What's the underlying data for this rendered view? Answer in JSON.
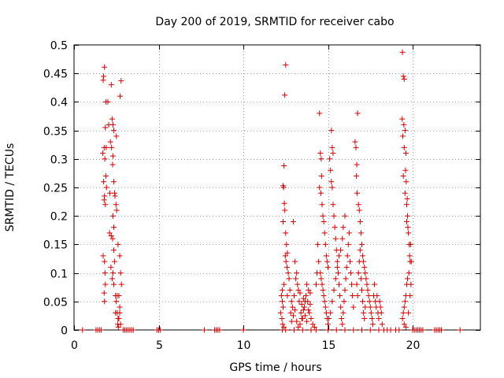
{
  "chart_data": {
    "type": "scatter",
    "title": "Day 200 of 2019, SRMTID for receiver cabo",
    "xlabel": "GPS time / hours",
    "ylabel": "SRMTID / TECUs",
    "xlim": [
      0,
      24
    ],
    "ylim": [
      0,
      0.5
    ],
    "xticks": [
      0,
      5,
      10,
      15,
      20
    ],
    "xtick_labels": [
      "0",
      "5",
      "10",
      "15",
      "20"
    ],
    "yticks": [
      0,
      0.05,
      0.1,
      0.15,
      0.2,
      0.25,
      0.3,
      0.35,
      0.4,
      0.45,
      0.5
    ],
    "ytick_labels": [
      "0",
      "0.05",
      "0.1",
      "0.15",
      "0.2",
      "0.25",
      "0.3",
      "0.35",
      "0.4",
      "0.45",
      "0.5"
    ],
    "grid": true,
    "marker": "+",
    "color": "#d40000",
    "series": [
      {
        "name": "SRMTID",
        "points": [
          [
            1.75,
            0.445
          ],
          [
            1.8,
            0.461
          ],
          [
            1.72,
            0.438
          ],
          [
            1.85,
            0.355
          ],
          [
            1.78,
            0.32
          ],
          [
            1.7,
            0.31
          ],
          [
            1.82,
            0.3
          ],
          [
            1.88,
            0.27
          ],
          [
            1.75,
            0.26
          ],
          [
            1.8,
            0.235
          ],
          [
            1.78,
            0.228
          ],
          [
            1.85,
            0.22
          ],
          [
            1.72,
            0.13
          ],
          [
            1.8,
            0.12
          ],
          [
            1.83,
            0.1
          ],
          [
            1.85,
            0.08
          ],
          [
            1.78,
            0.065
          ],
          [
            1.8,
            0.05
          ],
          [
            1.88,
            0.4
          ],
          [
            1.9,
            0.32
          ],
          [
            1.92,
            0.25
          ],
          [
            2.2,
            0.43
          ],
          [
            2.25,
            0.37
          ],
          [
            2.3,
            0.36
          ],
          [
            2.35,
            0.35
          ],
          [
            2.22,
            0.32
          ],
          [
            2.3,
            0.305
          ],
          [
            2.28,
            0.29
          ],
          [
            2.35,
            0.26
          ],
          [
            2.4,
            0.24
          ],
          [
            2.42,
            0.235
          ],
          [
            2.3,
            0.2
          ],
          [
            2.35,
            0.18
          ],
          [
            2.2,
            0.165
          ],
          [
            2.28,
            0.16
          ],
          [
            2.35,
            0.14
          ],
          [
            2.4,
            0.12
          ],
          [
            2.3,
            0.1
          ],
          [
            2.25,
            0.09
          ],
          [
            2.35,
            0.08
          ],
          [
            2.45,
            0.06
          ],
          [
            2.5,
            0.05
          ],
          [
            2.55,
            0.03
          ],
          [
            2.6,
            0.02
          ],
          [
            2.58,
            0.01
          ],
          [
            2.62,
            0.005
          ],
          [
            2.7,
            0.04
          ],
          [
            2.65,
            0.06
          ],
          [
            2.7,
            0.13
          ],
          [
            2.75,
            0.1
          ],
          [
            2.8,
            0.08
          ],
          [
            2.65,
            0.02
          ],
          [
            2.7,
            0.03
          ],
          [
            2.75,
            0.01
          ],
          [
            2.0,
            0.4
          ],
          [
            2.05,
            0.36
          ],
          [
            2.15,
            0.33
          ],
          [
            2.12,
            0.24
          ],
          [
            2.1,
            0.17
          ],
          [
            2.18,
            0.11
          ],
          [
            2.48,
            0.22
          ],
          [
            2.52,
            0.21
          ],
          [
            2.6,
            0.15
          ],
          [
            2.5,
            0.34
          ],
          [
            2.72,
            0.41
          ],
          [
            2.78,
            0.437
          ],
          [
            2.55,
            0.06
          ],
          [
            2.45,
            0.03
          ],
          [
            12.5,
            0.465
          ],
          [
            12.45,
            0.412
          ],
          [
            12.4,
            0.288
          ],
          [
            12.35,
            0.253
          ],
          [
            12.38,
            0.25
          ],
          [
            12.42,
            0.222
          ],
          [
            12.45,
            0.21
          ],
          [
            12.35,
            0.19
          ],
          [
            12.5,
            0.17
          ],
          [
            12.55,
            0.15
          ],
          [
            12.6,
            0.135
          ],
          [
            12.48,
            0.13
          ],
          [
            12.52,
            0.12
          ],
          [
            12.58,
            0.11
          ],
          [
            12.65,
            0.1
          ],
          [
            12.7,
            0.09
          ],
          [
            12.4,
            0.08
          ],
          [
            12.3,
            0.07
          ],
          [
            12.25,
            0.06
          ],
          [
            12.3,
            0.05
          ],
          [
            12.35,
            0.04
          ],
          [
            12.2,
            0.03
          ],
          [
            12.28,
            0.02
          ],
          [
            12.32,
            0.01
          ],
          [
            12.4,
            0.005
          ],
          [
            12.6,
            0.06
          ],
          [
            12.75,
            0.07
          ],
          [
            12.85,
            0.05
          ],
          [
            12.9,
            0.04
          ],
          [
            13.0,
            0.06
          ],
          [
            13.1,
            0.09
          ],
          [
            13.2,
            0.08
          ],
          [
            13.3,
            0.05
          ],
          [
            13.4,
            0.03
          ],
          [
            13.5,
            0.02
          ],
          [
            13.6,
            0.04
          ],
          [
            13.7,
            0.06
          ],
          [
            13.8,
            0.05
          ],
          [
            13.9,
            0.03
          ],
          [
            14.0,
            0.02
          ],
          [
            14.1,
            0.01
          ],
          [
            14.2,
            0.005
          ],
          [
            13.05,
            0.12
          ],
          [
            13.15,
            0.1
          ],
          [
            12.95,
            0.19
          ],
          [
            13.25,
            0.07
          ],
          [
            13.35,
            0.065
          ],
          [
            13.45,
            0.045
          ],
          [
            13.55,
            0.055
          ],
          [
            13.65,
            0.025
          ],
          [
            13.75,
            0.015
          ],
          [
            13.85,
            0.035
          ],
          [
            13.95,
            0.045
          ],
          [
            12.8,
            0.03
          ],
          [
            12.85,
            0.015
          ],
          [
            12.95,
            0.025
          ],
          [
            13.05,
            0.035
          ],
          [
            13.15,
            0.015
          ],
          [
            13.25,
            0.005
          ],
          [
            13.35,
            0.01
          ],
          [
            13.45,
            0.02
          ],
          [
            13.55,
            0.035
          ],
          [
            13.65,
            0.05
          ],
          [
            13.75,
            0.08
          ],
          [
            13.85,
            0.07
          ],
          [
            13.95,
            0.065
          ],
          [
            14.5,
            0.38
          ],
          [
            14.55,
            0.31
          ],
          [
            14.6,
            0.3
          ],
          [
            14.62,
            0.27
          ],
          [
            14.5,
            0.25
          ],
          [
            14.58,
            0.24
          ],
          [
            14.65,
            0.22
          ],
          [
            14.7,
            0.2
          ],
          [
            14.75,
            0.19
          ],
          [
            14.8,
            0.17
          ],
          [
            14.85,
            0.15
          ],
          [
            14.9,
            0.13
          ],
          [
            14.95,
            0.12
          ],
          [
            15.0,
            0.11
          ],
          [
            14.55,
            0.1
          ],
          [
            14.6,
            0.09
          ],
          [
            14.65,
            0.08
          ],
          [
            14.7,
            0.07
          ],
          [
            14.75,
            0.06
          ],
          [
            14.8,
            0.05
          ],
          [
            14.85,
            0.04
          ],
          [
            14.9,
            0.03
          ],
          [
            14.95,
            0.02
          ],
          [
            15.0,
            0.01
          ],
          [
            14.4,
            0.15
          ],
          [
            14.45,
            0.12
          ],
          [
            14.35,
            0.1
          ],
          [
            14.3,
            0.08
          ],
          [
            15.2,
            0.35
          ],
          [
            15.25,
            0.32
          ],
          [
            15.3,
            0.31
          ],
          [
            15.1,
            0.3
          ],
          [
            15.15,
            0.28
          ],
          [
            15.2,
            0.26
          ],
          [
            15.25,
            0.25
          ],
          [
            15.3,
            0.22
          ],
          [
            15.35,
            0.2
          ],
          [
            15.4,
            0.18
          ],
          [
            15.45,
            0.16
          ],
          [
            15.5,
            0.14
          ],
          [
            15.55,
            0.12
          ],
          [
            15.6,
            0.1
          ],
          [
            15.65,
            0.08
          ],
          [
            15.7,
            0.06
          ],
          [
            15.75,
            0.04
          ],
          [
            15.8,
            0.02
          ],
          [
            15.85,
            0.01
          ],
          [
            15.9,
            0.03
          ],
          [
            15.95,
            0.05
          ],
          [
            16.0,
            0.07
          ],
          [
            16.05,
            0.09
          ],
          [
            16.1,
            0.11
          ],
          [
            16.15,
            0.13
          ],
          [
            16.2,
            0.15
          ],
          [
            16.25,
            0.17
          ],
          [
            16.3,
            0.12
          ],
          [
            16.35,
            0.1
          ],
          [
            16.4,
            0.08
          ],
          [
            16.45,
            0.06
          ],
          [
            16.5,
            0.04
          ],
          [
            16.0,
            0.2
          ],
          [
            15.9,
            0.18
          ],
          [
            15.85,
            0.16
          ],
          [
            15.75,
            0.14
          ],
          [
            15.65,
            0.13
          ],
          [
            15.55,
            0.11
          ],
          [
            15.45,
            0.09
          ],
          [
            15.35,
            0.07
          ],
          [
            15.25,
            0.05
          ],
          [
            15.15,
            0.03
          ],
          [
            15.05,
            0.02
          ],
          [
            16.6,
            0.33
          ],
          [
            16.65,
            0.32
          ],
          [
            16.75,
            0.38
          ],
          [
            16.7,
            0.29
          ],
          [
            16.68,
            0.27
          ],
          [
            16.72,
            0.24
          ],
          [
            16.8,
            0.22
          ],
          [
            16.85,
            0.21
          ],
          [
            16.9,
            0.19
          ],
          [
            16.95,
            0.17
          ],
          [
            17.0,
            0.15
          ],
          [
            17.05,
            0.13
          ],
          [
            17.1,
            0.12
          ],
          [
            17.15,
            0.11
          ],
          [
            17.2,
            0.1
          ],
          [
            17.25,
            0.09
          ],
          [
            17.3,
            0.08
          ],
          [
            17.35,
            0.07
          ],
          [
            17.4,
            0.06
          ],
          [
            17.45,
            0.05
          ],
          [
            17.5,
            0.04
          ],
          [
            17.55,
            0.03
          ],
          [
            17.6,
            0.02
          ],
          [
            17.65,
            0.01
          ],
          [
            17.7,
            0.06
          ],
          [
            17.75,
            0.08
          ],
          [
            17.8,
            0.05
          ],
          [
            17.85,
            0.04
          ],
          [
            17.9,
            0.06
          ],
          [
            17.95,
            0.03
          ],
          [
            18.0,
            0.02
          ],
          [
            18.05,
            0.05
          ],
          [
            18.1,
            0.04
          ],
          [
            18.15,
            0.03
          ],
          [
            18.2,
            0.01
          ],
          [
            16.7,
            0.08
          ],
          [
            16.75,
            0.06
          ],
          [
            16.8,
            0.1
          ],
          [
            16.85,
            0.12
          ],
          [
            16.9,
            0.14
          ],
          [
            16.95,
            0.09
          ],
          [
            17.0,
            0.07
          ],
          [
            17.05,
            0.05
          ],
          [
            17.1,
            0.03
          ],
          [
            17.15,
            0.02
          ],
          [
            17.2,
            0.04
          ],
          [
            19.4,
            0.487
          ],
          [
            19.45,
            0.445
          ],
          [
            19.5,
            0.44
          ],
          [
            19.38,
            0.37
          ],
          [
            19.48,
            0.36
          ],
          [
            19.55,
            0.35
          ],
          [
            19.42,
            0.34
          ],
          [
            19.5,
            0.32
          ],
          [
            19.6,
            0.31
          ],
          [
            19.58,
            0.28
          ],
          [
            19.62,
            0.26
          ],
          [
            19.55,
            0.24
          ],
          [
            19.65,
            0.22
          ],
          [
            19.7,
            0.2
          ],
          [
            19.72,
            0.18
          ],
          [
            19.75,
            0.17
          ],
          [
            19.8,
            0.15
          ],
          [
            19.82,
            0.13
          ],
          [
            19.85,
            0.12
          ],
          [
            19.78,
            0.1
          ],
          [
            19.7,
            0.09
          ],
          [
            19.65,
            0.08
          ],
          [
            19.6,
            0.06
          ],
          [
            19.55,
            0.05
          ],
          [
            19.5,
            0.04
          ],
          [
            19.45,
            0.03
          ],
          [
            19.4,
            0.02
          ],
          [
            19.5,
            0.01
          ],
          [
            19.6,
            0.005
          ],
          [
            19.75,
            0.03
          ],
          [
            19.85,
            0.06
          ],
          [
            19.9,
            0.08
          ],
          [
            19.92,
            0.12
          ],
          [
            19.88,
            0.15
          ],
          [
            19.65,
            0.19
          ],
          [
            19.68,
            0.23
          ],
          [
            19.45,
            0.27
          ]
        ],
        "zero_points": [
          0.5,
          1.3,
          1.4,
          1.5,
          1.6,
          2.9,
          3.0,
          3.1,
          3.2,
          3.3,
          3.4,
          3.5,
          4.9,
          5.0,
          5.1,
          7.7,
          8.3,
          8.4,
          8.5,
          8.6,
          10.0,
          12.3,
          12.5,
          13.0,
          13.5,
          14.0,
          14.3,
          15.0,
          15.5,
          16.0,
          16.5,
          17.0,
          17.5,
          18.0,
          18.3,
          18.5,
          18.7,
          19.0,
          19.2,
          20.0,
          20.1,
          20.2,
          20.3,
          20.4,
          20.5,
          20.6,
          21.3,
          21.4,
          21.5,
          21.6,
          21.7,
          22.8
        ]
      }
    ]
  }
}
